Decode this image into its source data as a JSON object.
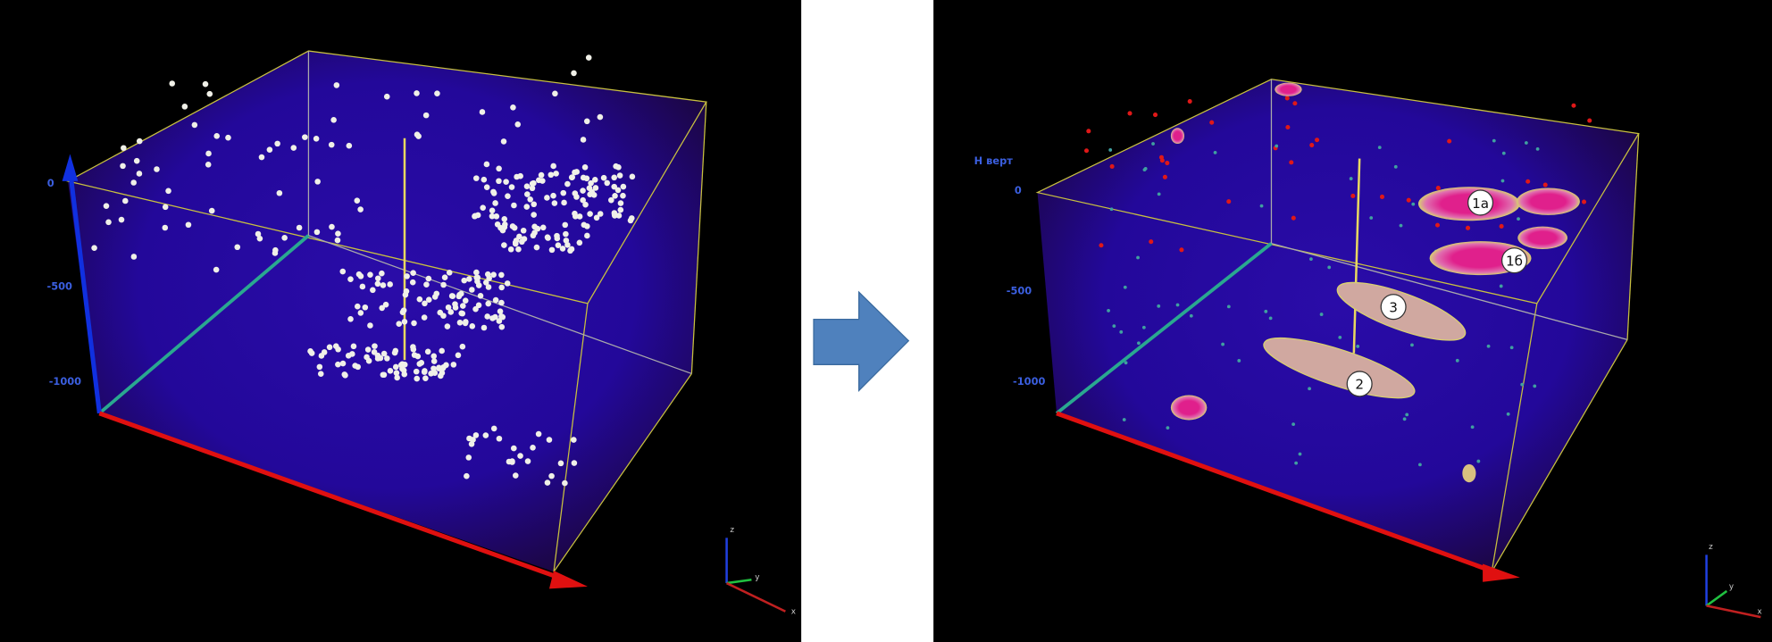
{
  "left_panel": {
    "axis_ticks": [
      "0",
      "-500",
      "-1000"
    ],
    "gizmo": [
      "z",
      "y",
      "x"
    ]
  },
  "right_panel": {
    "axis_title": "H верт",
    "axis_ticks": [
      "0",
      "-500",
      "-1000"
    ],
    "zone_labels": [
      "1а",
      "1б",
      "3",
      "2"
    ],
    "gizmo": [
      "z",
      "y",
      "x"
    ]
  }
}
